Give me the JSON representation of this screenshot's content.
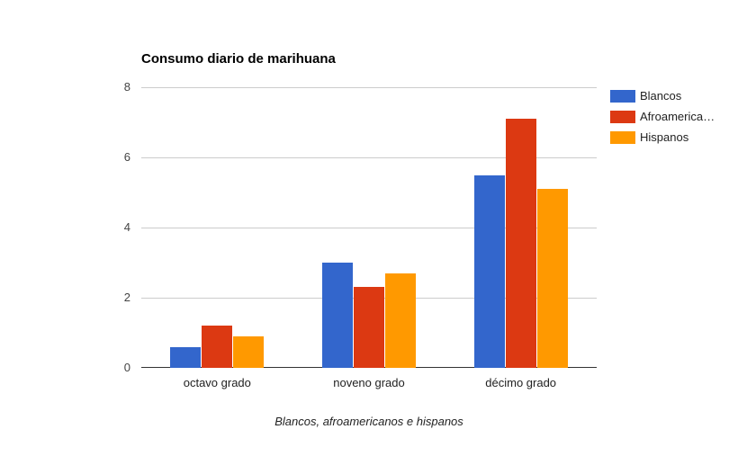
{
  "chart_data": {
    "type": "bar",
    "title": "Consumo diario de marihuana",
    "xlabel": "Blancos, afroamericanos e hispanos",
    "ylabel": "",
    "ylim": [
      0,
      8
    ],
    "yticks": [
      0,
      2,
      4,
      6,
      8
    ],
    "grid": true,
    "legend_position": "right",
    "categories": [
      "octavo grado",
      "noveno grado",
      "décimo grado"
    ],
    "series": [
      {
        "name": "Blancos",
        "legend_label": "Blancos",
        "color": "#3366cc",
        "values": [
          0.6,
          3.0,
          5.5
        ]
      },
      {
        "name": "Afroamericanos",
        "legend_label": "Afroamerica…",
        "color": "#dc3912",
        "values": [
          1.2,
          2.3,
          7.1
        ]
      },
      {
        "name": "Hispanos",
        "legend_label": "Hispanos",
        "color": "#ff9900",
        "values": [
          0.9,
          2.7,
          5.1
        ]
      }
    ]
  }
}
